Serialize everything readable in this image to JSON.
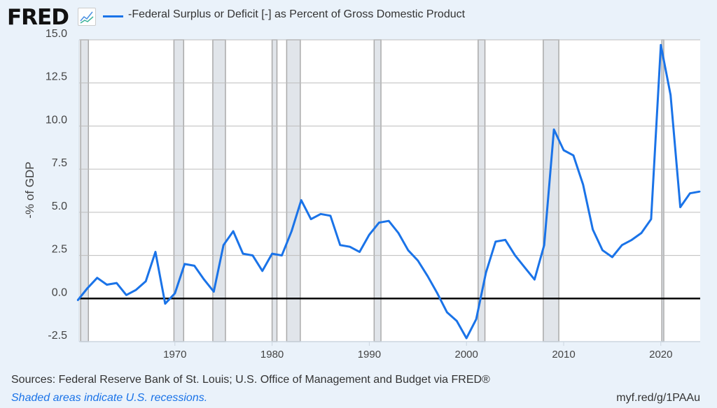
{
  "header": {
    "logo": "FRED",
    "series_label": "-Federal Surplus or Deficit [-] as Percent of Gross Domestic Product"
  },
  "footer": {
    "source": "Sources: Federal Reserve Bank of St. Louis; U.S. Office of Management and Budget via FRED®",
    "note": "Shaded areas indicate U.S. recessions.",
    "url": "myf.red/g/1PAAu"
  },
  "colors": {
    "line": "#1a73e8",
    "recession": "#e1e5ea",
    "background": "#eaf2fa"
  },
  "chart_data": {
    "type": "line",
    "title": "-Federal Surplus or Deficit [-] as Percent of Gross Domestic Product",
    "xlabel": "",
    "ylabel": "-% of GDP",
    "xlim": [
      1960,
      2024
    ],
    "ylim": [
      -2.5,
      15
    ],
    "yticks": [
      "15.0",
      "12.5",
      "10.0",
      "7.5",
      "5.0",
      "2.5",
      "0.0",
      "-2.5"
    ],
    "xticks": [
      "1970",
      "1980",
      "1990",
      "2000",
      "2010",
      "2020"
    ],
    "grid": true,
    "recessions": [
      [
        1960.3,
        1961.1
      ],
      [
        1969.9,
        1970.9
      ],
      [
        1973.9,
        1975.2
      ],
      [
        1980.0,
        1980.5
      ],
      [
        1981.5,
        1982.9
      ],
      [
        1990.5,
        1991.2
      ],
      [
        2001.2,
        2001.9
      ],
      [
        2007.9,
        2009.5
      ],
      [
        2020.1,
        2020.3
      ]
    ],
    "x": [
      1960,
      1961,
      1962,
      1963,
      1964,
      1965,
      1966,
      1967,
      1968,
      1969,
      1970,
      1971,
      1972,
      1973,
      1974,
      1975,
      1976,
      1977,
      1978,
      1979,
      1980,
      1981,
      1982,
      1983,
      1984,
      1985,
      1986,
      1987,
      1988,
      1989,
      1990,
      1991,
      1992,
      1993,
      1994,
      1995,
      1996,
      1997,
      1998,
      1999,
      2000,
      2001,
      2002,
      2003,
      2004,
      2005,
      2006,
      2007,
      2008,
      2009,
      2010,
      2011,
      2012,
      2013,
      2014,
      2015,
      2016,
      2017,
      2018,
      2019,
      2020,
      2021,
      2022,
      2023,
      2024
    ],
    "series": [
      {
        "name": "-Federal Surplus or Deficit [-] as Percent of Gross Domestic Product",
        "values": [
          -0.1,
          0.6,
          1.2,
          0.8,
          0.9,
          0.2,
          0.5,
          1.0,
          2.7,
          -0.3,
          0.3,
          2.0,
          1.9,
          1.1,
          0.4,
          3.1,
          3.9,
          2.6,
          2.5,
          1.6,
          2.6,
          2.5,
          3.9,
          5.7,
          4.6,
          4.9,
          4.8,
          3.1,
          3.0,
          2.7,
          3.7,
          4.4,
          4.5,
          3.8,
          2.8,
          2.2,
          1.3,
          0.3,
          -0.8,
          -1.3,
          -2.3,
          -1.2,
          1.5,
          3.3,
          3.4,
          2.5,
          1.8,
          1.1,
          3.1,
          9.8,
          8.6,
          8.3,
          6.6,
          4.0,
          2.8,
          2.4,
          3.1,
          3.4,
          3.8,
          4.6,
          14.7,
          11.8,
          5.3,
          6.1,
          6.2
        ]
      }
    ]
  }
}
